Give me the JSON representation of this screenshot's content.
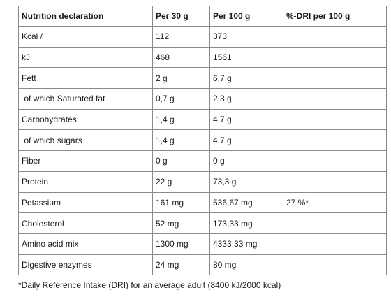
{
  "table": {
    "headers": [
      "Nutrition declaration",
      "Per 30 g",
      "Per 100 g",
      "%-DRI per 100 g"
    ],
    "rows": [
      {
        "name": "Kcal /",
        "per30": "112",
        "per100": "373",
        "dri": ""
      },
      {
        "name": "kJ",
        "per30": "468",
        "per100": "1561",
        "dri": ""
      },
      {
        "name": "Fett",
        "per30": "2 g",
        "per100": "6,7 g",
        "dri": ""
      },
      {
        "name": " of which Saturated fat",
        "per30": "0,7 g",
        "per100": "2,3 g",
        "dri": ""
      },
      {
        "name": "Carbohydrates",
        "per30": "1,4 g",
        "per100": "4,7 g",
        "dri": ""
      },
      {
        "name": " of which sugars",
        "per30": "1,4 g",
        "per100": "4,7 g",
        "dri": ""
      },
      {
        "name": "Fiber",
        "per30": "0 g",
        "per100": "0 g",
        "dri": ""
      },
      {
        "name": "Protein",
        "per30": "22 g",
        "per100": "73,3 g",
        "dri": ""
      },
      {
        "name": "Potassium",
        "per30": "161 mg",
        "per100": "536,67 mg",
        "dri": "27 %*"
      },
      {
        "name": "Cholesterol",
        "per30": "52 mg",
        "per100": "173,33 mg",
        "dri": ""
      },
      {
        "name": "Amino acid mix",
        "per30": "1300 mg",
        "per100": "4333,33 mg",
        "dri": ""
      },
      {
        "name": "Digestive enzymes",
        "per30": "24 mg",
        "per100": "80 mg",
        "dri": ""
      }
    ]
  },
  "footnote": "*Daily Reference Intake (DRI) for an average adult (8400 kJ/2000 kcal)"
}
